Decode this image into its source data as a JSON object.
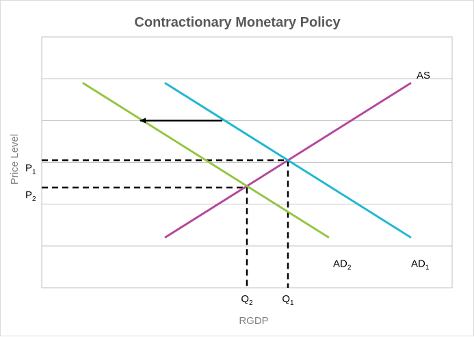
{
  "chart_data": {
    "type": "line",
    "title": "Contractionary Monetary Policy",
    "xlabel": "RGDP",
    "ylabel": "Price Level",
    "xlim": [
      0,
      100
    ],
    "ylim": [
      0,
      6
    ],
    "grid": "horizontal",
    "series": [
      {
        "name": "AS",
        "color": "#b5479c",
        "points": [
          [
            30,
            1.2
          ],
          [
            90,
            4.9
          ]
        ]
      },
      {
        "name": "AD1",
        "color": "#20b7d3",
        "points": [
          [
            30,
            4.9
          ],
          [
            90,
            1.2
          ]
        ]
      },
      {
        "name": "AD2",
        "color": "#92c640",
        "points": [
          [
            10,
            4.9
          ],
          [
            70,
            1.2
          ]
        ]
      }
    ],
    "curve_labels": [
      {
        "base": "AS",
        "sub": "",
        "x": 90,
        "y": 5.0
      },
      {
        "base": "AD",
        "sub": "2",
        "x": 71,
        "y": 0.5
      },
      {
        "base": "AD",
        "sub": "1",
        "x": 90,
        "y": 0.5
      }
    ],
    "equilibria": [
      {
        "p_label": "P",
        "p_sub": "1",
        "q_label": "Q",
        "q_sub": "1",
        "x": 60,
        "y": 3.05
      },
      {
        "p_label": "P",
        "p_sub": "2",
        "q_label": "Q",
        "q_sub": "2",
        "x": 50,
        "y": 2.4
      }
    ],
    "shift_arrow": {
      "from": [
        44,
        4.0
      ],
      "to": [
        24,
        4.0
      ]
    }
  }
}
